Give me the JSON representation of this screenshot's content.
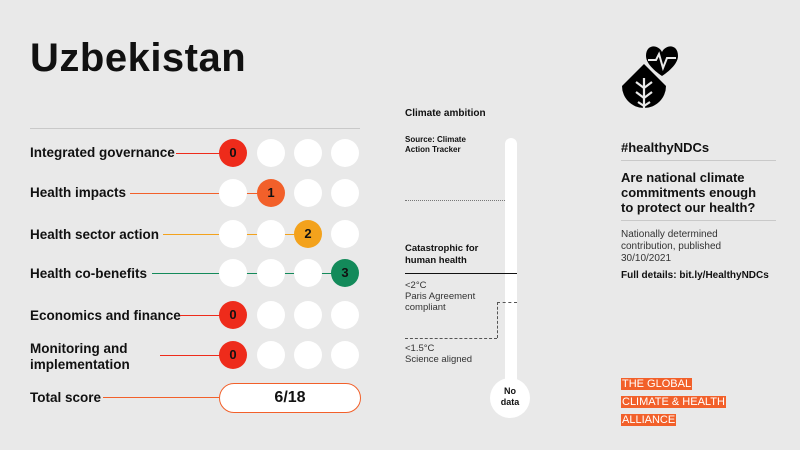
{
  "title": "Uzbekistan",
  "rows": [
    {
      "label": "Integrated governance",
      "score": "0",
      "color": "#ee2b1b"
    },
    {
      "label": "Health impacts",
      "score": "1",
      "color": "#f2602a"
    },
    {
      "label": "Health sector action",
      "score": "2",
      "color": "#f3a21c"
    },
    {
      "label": "Health co-benefits",
      "score": "3",
      "color": "#138a5a"
    },
    {
      "label": "Economics and finance",
      "score": "0",
      "color": "#ee2b1b"
    },
    {
      "label": "Monitoring and implementation",
      "label_line1": "Monitoring and",
      "label_line2": "implementation",
      "score": "0",
      "color": "#ee2b1b"
    }
  ],
  "total": {
    "label": "Total score",
    "value": "6/18"
  },
  "climate": {
    "heading": "Climate ambition",
    "source_line1": "Source: Climate",
    "source_line2": "Action Tracker",
    "catastrophic_line1": "Catastrophic for",
    "catastrophic_line2": "human health",
    "two_deg_line1": "<2°C",
    "two_deg_line2": "Paris Agreement",
    "two_deg_line3": "compliant",
    "one_five_line1": "<1.5°C",
    "one_five_line2": "Science aligned",
    "bulb_line1": "No",
    "bulb_line2": "data"
  },
  "right": {
    "hashtag": "#healthyNDCs",
    "question_line1": "Are national climate",
    "question_line2": "commitments enough",
    "question_line3": "to protect our health?",
    "ndc_line1": "Nationally determined",
    "ndc_line2": "contribution, published",
    "ndc_line3": "30/10/2021",
    "details": "Full details: bit.ly/HealthyNDCs"
  },
  "logo": {
    "line1": "THE GLOBAL",
    "line2": "CLIMATE & HEALTH",
    "line3": "ALLIANCE",
    "color": "#f2602a"
  },
  "icon": "heart-leaf-icon"
}
